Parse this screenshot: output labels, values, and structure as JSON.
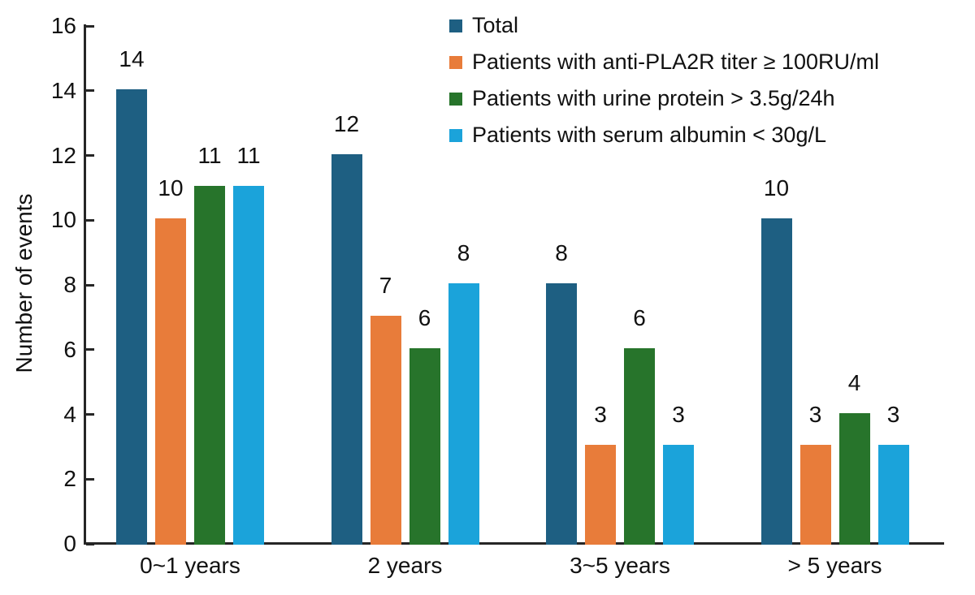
{
  "figure": {
    "ylabel": "Number of events",
    "background_color": "#ffffff",
    "axis_color": "#262626",
    "text_color": "#111111"
  },
  "chart_data": {
    "type": "bar",
    "title": "",
    "xlabel": "",
    "ylabel": "Number of events",
    "categories": [
      "0~1 years",
      "2 years",
      "3~5 years",
      "> 5 years"
    ],
    "series": [
      {
        "name": "Total",
        "color": "#1e5f82",
        "values": [
          14,
          12,
          8,
          10
        ]
      },
      {
        "name": "Patients with anti-PLA2R titer ≥ 100RU/ml",
        "color": "#e87c3a",
        "values": [
          10,
          7,
          3,
          3
        ]
      },
      {
        "name": "Patients with urine protein > 3.5g/24h",
        "color": "#27742b",
        "values": [
          11,
          6,
          6,
          4
        ]
      },
      {
        "name": "Patients with serum albumin < 30g/L",
        "color": "#1ba3da",
        "values": [
          11,
          8,
          3,
          3
        ]
      }
    ],
    "ylim": [
      0,
      16
    ],
    "yticks": [
      0,
      2,
      4,
      6,
      8,
      10,
      12,
      14,
      16
    ],
    "grid": false,
    "value_labels": true,
    "legend_position": "top-right",
    "axes_shown": [
      "left",
      "bottom"
    ]
  }
}
